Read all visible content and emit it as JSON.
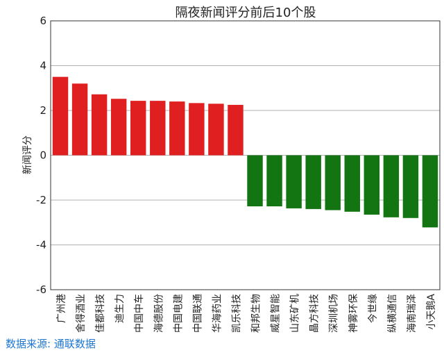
{
  "chart_data": {
    "type": "bar",
    "title": "隔夜新闻评分前后10个股",
    "xlabel": "",
    "ylabel": "新闻评分",
    "ylim": [
      -6,
      6
    ],
    "yticks": [
      -6,
      -4,
      -2,
      0,
      2,
      4,
      6
    ],
    "grid": "horizontal",
    "legend": "none",
    "categories": [
      "广州港",
      "舍得酒业",
      "佳都科技",
      "迪生力",
      "中国中车",
      "海德股份",
      "中国电建",
      "中国联通",
      "华海药业",
      "凯乐科技",
      "和邦生物",
      "威星智能",
      "山东矿机",
      "晶方科技",
      "深圳机场",
      "神雾环保",
      "今世缘",
      "纵横通信",
      "海南瑞泽",
      "小天鹅A"
    ],
    "values": [
      3.5,
      3.2,
      2.72,
      2.52,
      2.43,
      2.43,
      2.4,
      2.33,
      2.3,
      2.25,
      -2.28,
      -2.28,
      -2.37,
      -2.4,
      -2.45,
      -2.52,
      -2.65,
      -2.77,
      -2.8,
      -3.22
    ],
    "colors": {
      "positive": "#e02020",
      "negative": "#127512"
    }
  },
  "footer": {
    "source": "数据来源: 通联数据"
  }
}
